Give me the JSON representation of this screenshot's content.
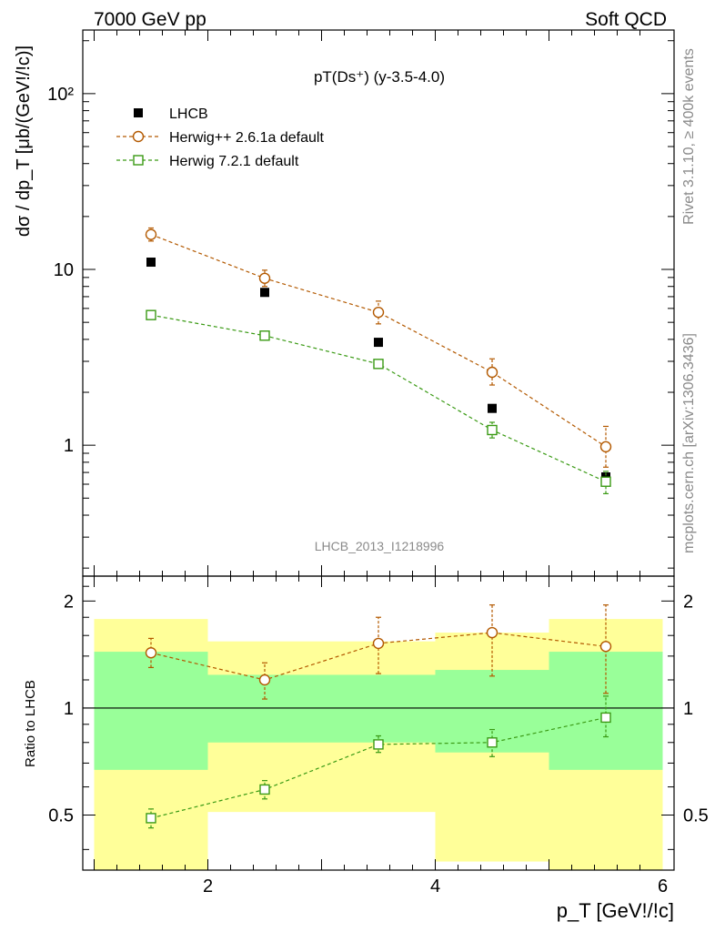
{
  "header": {
    "left": "7000 GeV pp",
    "right": "Soft QCD"
  },
  "side_text": {
    "rivet": "Rivet 3.1.10, ≥ 400k events",
    "source": "mcplots.cern.ch [arXiv:1306.3436]"
  },
  "chart_data": [
    {
      "type": "scatter",
      "title": "pT(Ds⁺) (y-3.5-4.0)",
      "watermark": "LHCB_2013_I1218996",
      "ylabel": "dσ / dp_T [μb/(GeV!/!c)]",
      "yscale": "log",
      "xlim": [
        0.9,
        6.1
      ],
      "ylim": [
        0.18,
        230
      ],
      "ytick_labels": [
        "1",
        "10",
        "10²"
      ],
      "ytick_values": [
        1,
        10,
        100
      ],
      "x": [
        1.5,
        2.5,
        3.5,
        4.5,
        5.5
      ],
      "series": [
        {
          "name": "LHCB",
          "color": "#000000",
          "marker": "filled-square",
          "values": [
            11.0,
            7.4,
            3.85,
            1.62,
            0.66
          ]
        },
        {
          "name": "Herwig++ 2.6.1a default",
          "color": "#b35900",
          "marker": "open-circle",
          "values": [
            15.8,
            8.9,
            5.7,
            2.6,
            0.98
          ],
          "err": [
            [
              14.5,
              17.2
            ],
            [
              8.0,
              9.9
            ],
            [
              4.9,
              6.6
            ],
            [
              2.2,
              3.1
            ],
            [
              0.75,
              1.28
            ]
          ]
        },
        {
          "name": "Herwig 7.2.1 default",
          "color": "#3a9a14",
          "marker": "open-square",
          "values": [
            5.5,
            4.2,
            2.9,
            1.22,
            0.62
          ],
          "err": [
            [
              5.35,
              5.65
            ],
            [
              4.05,
              4.35
            ],
            [
              2.75,
              3.05
            ],
            [
              1.1,
              1.35
            ],
            [
              0.53,
              0.71
            ]
          ]
        }
      ],
      "legend_position": "top-left"
    },
    {
      "type": "scatter",
      "ylabel": "Ratio to LHCB",
      "xlabel": "p_T [GeV!/!c]",
      "xlim": [
        0.9,
        6.1
      ],
      "ylim": [
        0.35,
        2.35
      ],
      "yscale": "log",
      "xtick_labels": [
        "2",
        "4",
        "6"
      ],
      "xtick_values": [
        2,
        4,
        6
      ],
      "ytick_labels": [
        "0.5",
        "1",
        "2"
      ],
      "ytick_values": [
        0.5,
        1,
        2
      ],
      "reference_line": 1,
      "bands": {
        "x_edges": [
          1,
          2,
          3,
          4,
          5,
          6
        ],
        "total_color": "#ffff99",
        "stat_color": "#99ff99",
        "total": [
          [
            0.35,
            1.78
          ],
          [
            0.51,
            1.54
          ],
          [
            0.51,
            1.54
          ],
          [
            0.37,
            1.63
          ],
          [
            0.35,
            1.78
          ]
        ],
        "stat": [
          [
            0.67,
            1.44
          ],
          [
            0.8,
            1.24
          ],
          [
            0.8,
            1.24
          ],
          [
            0.75,
            1.28
          ],
          [
            0.67,
            1.44
          ]
        ]
      },
      "x": [
        1.5,
        2.5,
        3.5,
        4.5,
        5.5
      ],
      "series": [
        {
          "name": "Herwig++ 2.6.1a default",
          "color": "#b35900",
          "marker": "open-circle",
          "values": [
            1.43,
            1.2,
            1.52,
            1.63,
            1.49
          ],
          "err": [
            [
              1.3,
              1.57
            ],
            [
              1.06,
              1.34
            ],
            [
              1.25,
              1.8
            ],
            [
              1.23,
              1.95
            ],
            [
              1.1,
              1.95
            ]
          ]
        },
        {
          "name": "Herwig 7.2.1 default",
          "color": "#3a9a14",
          "marker": "open-square",
          "values": [
            0.49,
            0.59,
            0.79,
            0.8,
            0.94
          ],
          "err": [
            [
              0.46,
              0.52
            ],
            [
              0.555,
              0.625
            ],
            [
              0.75,
              0.835
            ],
            [
              0.73,
              0.87
            ],
            [
              0.83,
              1.08
            ]
          ]
        }
      ]
    }
  ]
}
